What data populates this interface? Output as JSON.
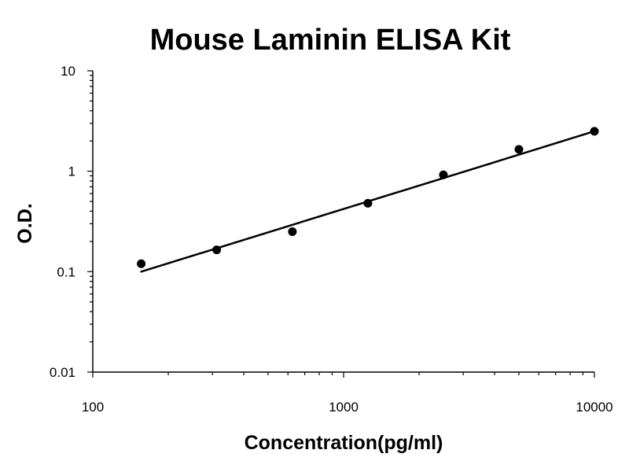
{
  "chart_data": {
    "type": "scatter",
    "title": "Mouse Laminin ELISA Kit",
    "xlabel": "Concentration(pg/ml)",
    "ylabel": "O.D.",
    "x_scale": "log",
    "y_scale": "log",
    "xlim": [
      100,
      10000
    ],
    "ylim": [
      0.01,
      10
    ],
    "x_ticks": [
      {
        "value": 100,
        "label": "100"
      },
      {
        "value": 1000,
        "label": "1000"
      },
      {
        "value": 10000,
        "label": "10000"
      }
    ],
    "y_ticks": [
      {
        "value": 10,
        "label": "10"
      },
      {
        "value": 1,
        "label": "1"
      },
      {
        "value": 0.1,
        "label": "0.1"
      },
      {
        "value": 0.01,
        "label": "0.01"
      }
    ],
    "grid": false,
    "legend": "none",
    "colors": {
      "points": "#000000",
      "line": "#000000",
      "axes": "#000000"
    },
    "series": [
      {
        "points": [
          {
            "x": 156,
            "y": 0.12
          },
          {
            "x": 312,
            "y": 0.165
          },
          {
            "x": 625,
            "y": 0.25
          },
          {
            "x": 1250,
            "y": 0.48
          },
          {
            "x": 2500,
            "y": 0.92
          },
          {
            "x": 5000,
            "y": 1.65
          },
          {
            "x": 10000,
            "y": 2.5
          }
        ]
      }
    ],
    "trendline": {
      "type": "power",
      "x_start": 156,
      "y_start": 0.1,
      "x_end": 10000,
      "y_end": 2.5
    }
  }
}
